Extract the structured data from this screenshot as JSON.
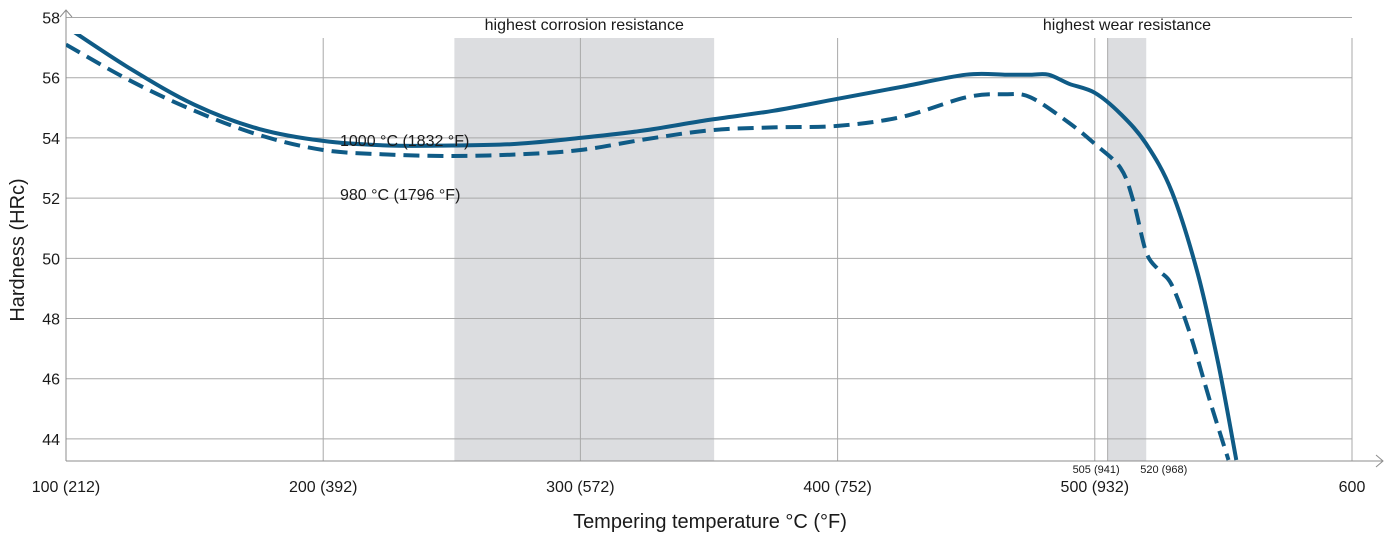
{
  "chart_data": {
    "type": "line",
    "xlabel": "Tempering temperature °C (°F)",
    "ylabel": "Hardness (HRc)",
    "xlim": [
      100,
      614
    ],
    "ylim": [
      43.3,
      58.5
    ],
    "x_ticks": [
      {
        "value": 100,
        "label": "100 (212)"
      },
      {
        "value": 200,
        "label": "200 (392)"
      },
      {
        "value": 300,
        "label": "300 (572)"
      },
      {
        "value": 400,
        "label": "400 (752)"
      },
      {
        "value": 500,
        "label": "500 (932)"
      },
      {
        "value": 600,
        "label": "600"
      }
    ],
    "y_ticks": [
      44,
      46,
      48,
      50,
      52,
      54,
      56,
      58
    ],
    "bands": [
      {
        "from": 251,
        "to": 352,
        "label": "highest corrosion resistance"
      },
      {
        "from": 505,
        "to": 520,
        "label": "highest wear resistance"
      }
    ],
    "band_marks": [
      {
        "value": 505,
        "label": "505 (941)"
      },
      {
        "value": 520,
        "label": "520 (968)"
      }
    ],
    "grid": true,
    "series": [
      {
        "name": "1000 °C (1832 °F)",
        "style": "solid",
        "color": "#0f5b86",
        "x": [
          100,
          125,
          150,
          175,
          200,
          225,
          250,
          275,
          300,
          325,
          350,
          375,
          400,
          425,
          450,
          465,
          475,
          482,
          490,
          500,
          510,
          520,
          530,
          540,
          548,
          555
        ],
        "y": [
          57.7,
          56.3,
          55.1,
          54.3,
          53.9,
          53.75,
          53.75,
          53.8,
          54.0,
          54.25,
          54.6,
          54.9,
          55.3,
          55.7,
          56.1,
          56.1,
          56.1,
          56.1,
          55.8,
          55.5,
          54.8,
          53.8,
          52.2,
          49.5,
          46.5,
          43.3
        ]
      },
      {
        "name": "980 °C (1796 °F)",
        "style": "dashed",
        "color": "#0f5b86",
        "x": [
          100,
          125,
          150,
          175,
          200,
          225,
          250,
          275,
          300,
          325,
          350,
          375,
          400,
          425,
          450,
          465,
          475,
          490,
          500,
          510,
          515,
          520,
          525,
          530,
          537,
          545,
          552
        ],
        "y": [
          57.1,
          55.9,
          54.9,
          54.1,
          53.6,
          53.45,
          53.4,
          53.45,
          53.6,
          53.95,
          54.25,
          54.35,
          54.4,
          54.7,
          55.35,
          55.45,
          55.35,
          54.5,
          53.8,
          53.0,
          51.9,
          50.2,
          49.6,
          49.1,
          47.5,
          45.2,
          43.3
        ]
      }
    ]
  }
}
